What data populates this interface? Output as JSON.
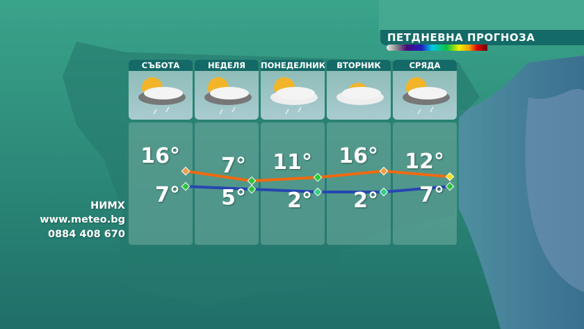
{
  "title": "ПЕТДНЕВНА ПРОГНОЗА",
  "colors": {
    "max_line": "#f06a10",
    "min_line": "#2646b0",
    "panel_header": "#146a66"
  },
  "source": {
    "org": "НИМХ",
    "website": "www.meteo.bg",
    "phone": "0884 408 670"
  },
  "days": [
    {
      "name": "СЪБОТА",
      "icon": "sun-cloud-rain-icon",
      "max": "16°",
      "min": "7°",
      "max_value": 16,
      "min_value": 7
    },
    {
      "name": "НЕДЕЛЯ",
      "icon": "sun-cloud-rain-icon",
      "max": "7°",
      "min": "5°",
      "max_value": 7,
      "min_value": 5
    },
    {
      "name": "ПОНЕДЕЛНИК",
      "icon": "sun-cloud-light-rain-icon",
      "max": "11°",
      "min": "2°",
      "max_value": 11,
      "min_value": 2
    },
    {
      "name": "ВТОРНИК",
      "icon": "sun-cloud-icon",
      "max": "16°",
      "min": "2°",
      "max_value": 16,
      "min_value": 2
    },
    {
      "name": "СРЯДА",
      "icon": "sun-cloud-rain-icon",
      "max": "12°",
      "min": "7°",
      "max_value": 12,
      "min_value": 7
    }
  ]
}
